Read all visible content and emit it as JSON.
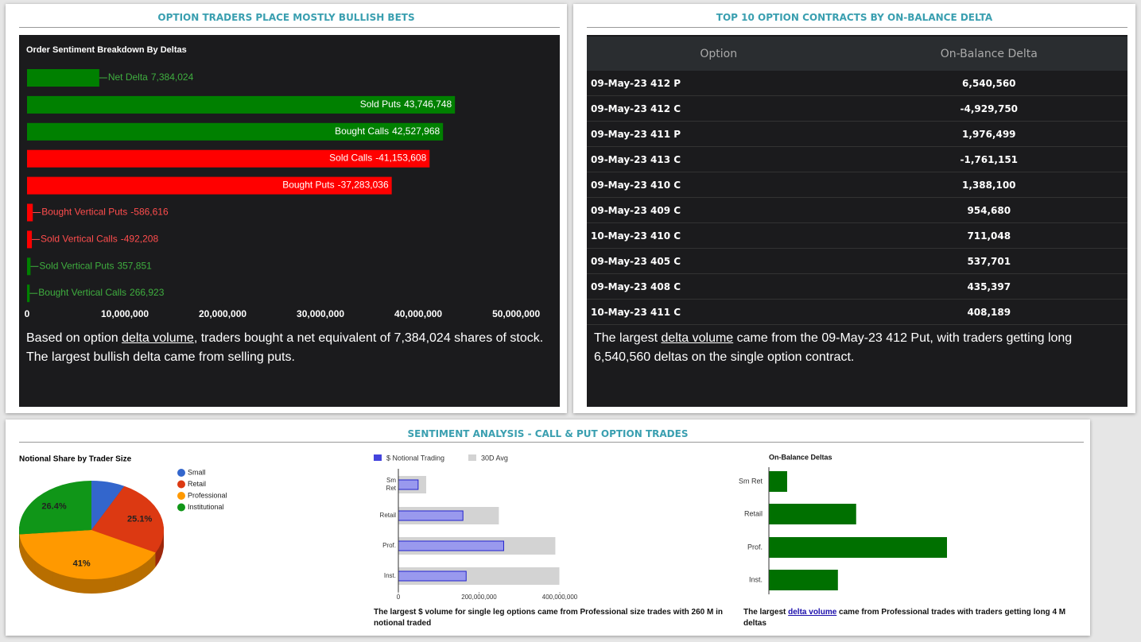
{
  "panels": [
    {
      "title": "OPTION TRADERS PLACE MOSTLY BULLISH BETS",
      "text": {
        "before": "Based on option ",
        "link": "delta volume",
        "after": ", traders bought a net equivalent of 7,384,024 shares of stock. The largest bullish delta came from selling puts."
      }
    },
    {
      "title": "TOP 10 OPTION CONTRACTS BY ON-BALANCE DELTA",
      "text": {
        "before": "The largest ",
        "link": "delta volume",
        "after": " came from the 09-May-23 412 Put, with traders getting long 6,540,560 deltas on the single option contract."
      }
    },
    {
      "title": "SENTIMENT ANALYSIS - CALL & PUT OPTION TRADES"
    }
  ],
  "table": {
    "columns": [
      "Option",
      "On-Balance Delta"
    ],
    "rows": [
      [
        "09-May-23 412 P",
        "6,540,560"
      ],
      [
        "09-May-23 412 C",
        "-4,929,750"
      ],
      [
        "09-May-23 411 P",
        "1,976,499"
      ],
      [
        "09-May-23 413 C",
        "-1,761,151"
      ],
      [
        "09-May-23 410 C",
        "1,388,100"
      ],
      [
        "09-May-23 409 C",
        "954,680"
      ],
      [
        "10-May-23 410 C",
        "711,048"
      ],
      [
        "09-May-23 405 C",
        "537,701"
      ],
      [
        "09-May-23 408 C",
        "435,397"
      ],
      [
        "10-May-23 411 C",
        "408,189"
      ]
    ]
  },
  "chart_data": [
    {
      "type": "hbar",
      "title": "Order Sentiment Breakdown By Deltas",
      "categories": [
        "Net Delta",
        "Sold Puts",
        "Bought Calls",
        "Sold Calls",
        "Bought Puts",
        "Bought Vertical Puts",
        "Sold Vertical Calls",
        "Sold Vertical Puts",
        "Bought Vertical Calls"
      ],
      "values": [
        7384024,
        43746748,
        42527968,
        -41153608,
        -37283036,
        -586616,
        -492208,
        357851,
        266923
      ],
      "value_labels": [
        "7,384,024",
        "43,746,748",
        "42,527,968",
        "-41,153,608",
        "-37,283,036",
        "-586,616",
        "-492,208",
        "357,851",
        "266,923"
      ],
      "colors": [
        "#008000",
        "#008000",
        "#008000",
        "#ff0000",
        "#ff0000",
        "#ff0000",
        "#ff0000",
        "#008000",
        "#008000"
      ],
      "xlim": [
        0,
        53000000
      ],
      "xticks": [
        0,
        {
          "value": 10000000,
          "label": "10,000,000"
        },
        {
          "value": 20000000,
          "label": "20,000,000"
        },
        {
          "value": 30000000,
          "label": "30,000,000"
        },
        {
          "value": 40000000,
          "label": "40,000,000"
        },
        {
          "value": 50000000,
          "label": "50,000,000"
        }
      ]
    },
    {
      "type": "pie3d",
      "title": "Notional Share by Trader Size",
      "categories": [
        "Small",
        "Retail",
        "Professional",
        "Institutional"
      ],
      "values": [
        7.5,
        25.1,
        41,
        26.4
      ],
      "value_labels": [
        null,
        "25.1%",
        "41%",
        "26.4%"
      ],
      "colors": [
        "#3366cc",
        "#dc3912",
        "#ff9900",
        "#109618"
      ]
    },
    {
      "type": "overlay_hbar",
      "categories": [
        "Sm Ret",
        "Retail",
        "Prof.",
        "Inst."
      ],
      "series": [
        {
          "name": "$ Notional Trading",
          "color": "#9999ee",
          "values": [
            49000000,
            160000000,
            261000000,
            168000000
          ]
        },
        {
          "name": "30D Avg",
          "color": "#d3d3d3",
          "values": [
            69000000,
            249000000,
            389000000,
            399000000
          ]
        }
      ],
      "xlim": [
        0,
        400000000
      ],
      "xticks": [
        0,
        {
          "value": 200000000,
          "label": "200,000,000"
        },
        {
          "value": 400000000,
          "label": "400,000,000"
        }
      ],
      "caption": "The largest $ volume for single leg options came from Professional size trades with 260 M in notional traded"
    },
    {
      "type": "hbar_plain",
      "title": "On-Balance Deltas",
      "categories": [
        "Sm Ret",
        "Retail",
        "Prof.",
        "Inst."
      ],
      "values": [
        410000,
        1960000,
        4000000,
        1550000
      ],
      "color": "#007000",
      "xlim": [
        0,
        4500000
      ],
      "caption": {
        "before": "The largest ",
        "link": "delta volume",
        "after": " came from Professional trades with traders getting long 4 M deltas"
      }
    }
  ]
}
